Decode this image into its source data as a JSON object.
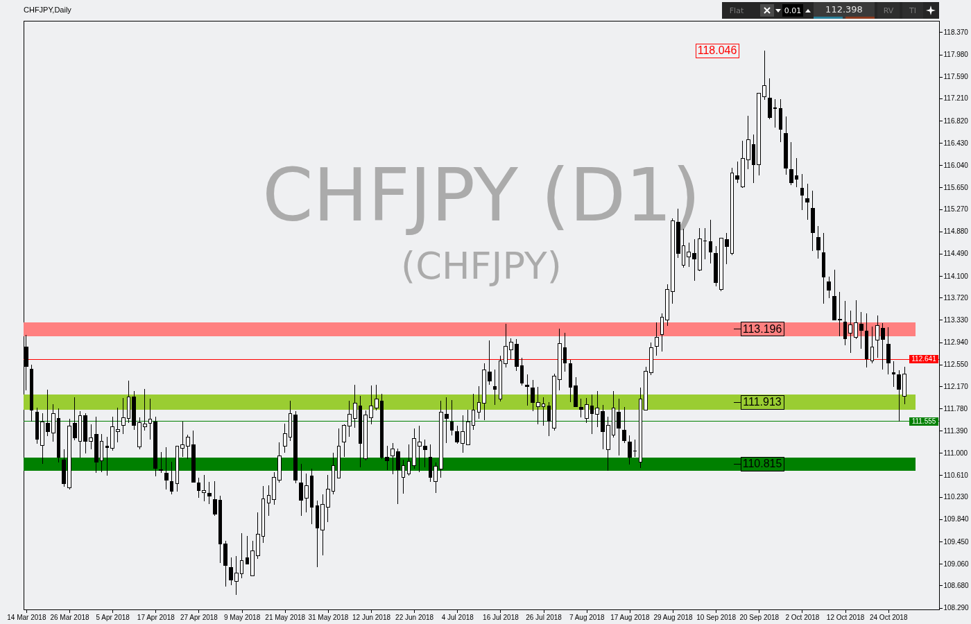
{
  "chart_data": {
    "type": "candlestick",
    "title": "CHFJPY,Daily",
    "categories": [
      "14 Mar 2018",
      null,
      null,
      null,
      null,
      null,
      null,
      null,
      "26 Mar 2018",
      null,
      null,
      null,
      null,
      null,
      null,
      null,
      "5 Apr 2018",
      null,
      null,
      null,
      null,
      null,
      null,
      null,
      "17 Apr 2018",
      null,
      null,
      null,
      null,
      null,
      null,
      null,
      "27 Apr 2018",
      null,
      null,
      null,
      null,
      null,
      null,
      null,
      "9 May 2018",
      null,
      null,
      null,
      null,
      null,
      null,
      null,
      "21 May 2018",
      null,
      null,
      null,
      null,
      null,
      null,
      null,
      "31 May 2018",
      null,
      null,
      null,
      null,
      null,
      null,
      null,
      "12 Jun 2018",
      null,
      null,
      null,
      null,
      null,
      null,
      null,
      "22 Jun 2018",
      null,
      null,
      null,
      null,
      null,
      null,
      null,
      "4 Jul 2018",
      null,
      null,
      null,
      null,
      null,
      null,
      null,
      "16 Jul 2018",
      null,
      null,
      null,
      null,
      null,
      null,
      null,
      "26 Jul 2018",
      null,
      null,
      null,
      null,
      null,
      null,
      null,
      "7 Aug 2018",
      null,
      null,
      null,
      null,
      null,
      null,
      null,
      "17 Aug 2018",
      null,
      null,
      null,
      null,
      null,
      null,
      null,
      "29 Aug 2018",
      null,
      null,
      null,
      null,
      null,
      null,
      null,
      "10 Sep 2018",
      null,
      null,
      null,
      null,
      null,
      null,
      null,
      "20 Sep 2018",
      null,
      null,
      null,
      null,
      null,
      null,
      null,
      "2 Oct 2018",
      null,
      null,
      null,
      null,
      null,
      null,
      null,
      "12 Oct 2018",
      null,
      null,
      null,
      null,
      null,
      null,
      null,
      "24 Oct 2018",
      null,
      null,
      null
    ],
    "ohlc": [
      [
        112.86,
        113.07,
        112.1,
        112.52
      ],
      [
        112.47,
        112.55,
        111.55,
        111.75
      ],
      [
        111.72,
        111.79,
        111.16,
        111.24
      ],
      [
        111.13,
        111.7,
        110.81,
        111.55
      ],
      [
        111.52,
        112.11,
        111.3,
        111.37
      ],
      [
        111.35,
        111.86,
        111.2,
        111.69
      ],
      [
        111.61,
        111.78,
        110.84,
        110.92
      ],
      [
        110.88,
        111.06,
        110.41,
        110.46
      ],
      [
        110.39,
        111.6,
        110.36,
        111.47
      ],
      [
        111.52,
        111.97,
        111.22,
        111.26
      ],
      [
        111.21,
        111.73,
        110.92,
        111.66
      ],
      [
        111.65,
        111.7,
        110.99,
        111.21
      ],
      [
        111.21,
        111.5,
        111.07,
        111.27
      ],
      [
        111.33,
        111.64,
        110.65,
        110.84
      ],
      [
        110.86,
        111.33,
        110.67,
        111.2
      ],
      [
        111.12,
        111.28,
        110.6,
        111.1
      ],
      [
        111.08,
        111.64,
        111.04,
        111.46
      ],
      [
        111.38,
        111.79,
        111.19,
        111.41
      ],
      [
        111.48,
        111.96,
        111.33,
        111.62
      ],
      [
        111.6,
        112.27,
        111.53,
        111.98
      ],
      [
        111.98,
        112.09,
        111.4,
        111.49
      ],
      [
        111.11,
        111.62,
        111.06,
        111.53
      ],
      [
        111.46,
        112.12,
        111.39,
        111.51
      ],
      [
        111.52,
        111.95,
        111.23,
        111.59
      ],
      [
        111.55,
        111.64,
        110.59,
        110.73
      ],
      [
        110.71,
        111.02,
        110.65,
        110.7
      ],
      [
        110.65,
        111.1,
        110.36,
        110.52
      ],
      [
        110.5,
        110.85,
        110.28,
        110.33
      ],
      [
        110.47,
        111.13,
        110.33,
        111.12
      ],
      [
        111.08,
        111.55,
        110.93,
        111.14
      ],
      [
        111.12,
        111.32,
        110.89,
        111.28
      ],
      [
        111.15,
        111.39,
        110.48,
        110.49
      ],
      [
        110.48,
        110.57,
        110.22,
        110.34
      ],
      [
        110.31,
        110.61,
        110.16,
        110.34
      ],
      [
        110.3,
        110.49,
        110.1,
        110.25
      ],
      [
        110.18,
        110.51,
        109.9,
        109.93
      ],
      [
        110.17,
        110.25,
        109.07,
        109.41
      ],
      [
        109.41,
        109.46,
        108.66,
        109.03
      ],
      [
        109.0,
        109.17,
        108.69,
        108.78
      ],
      [
        108.75,
        109.2,
        108.51,
        108.9
      ],
      [
        108.89,
        109.6,
        108.81,
        109.12
      ],
      [
        109.16,
        109.55,
        109.05,
        109.06
      ],
      [
        108.85,
        109.46,
        108.85,
        109.29
      ],
      [
        109.2,
        109.96,
        109.15,
        109.58
      ],
      [
        109.54,
        110.42,
        109.43,
        110.2
      ],
      [
        110.12,
        110.43,
        109.9,
        110.26
      ],
      [
        110.19,
        110.66,
        110.09,
        110.57
      ],
      [
        110.52,
        111.19,
        110.48,
        110.95
      ],
      [
        111.12,
        111.51,
        111.0,
        111.34
      ],
      [
        111.28,
        111.91,
        111.21,
        111.69
      ],
      [
        111.67,
        111.73,
        110.47,
        110.53
      ],
      [
        110.48,
        110.81,
        109.9,
        110.17
      ],
      [
        110.21,
        110.64,
        109.96,
        110.43
      ],
      [
        110.6,
        110.72,
        109.75,
        110.05
      ],
      [
        110.07,
        110.17,
        109.0,
        109.69
      ],
      [
        109.65,
        110.28,
        109.21,
        110.1
      ],
      [
        110.05,
        110.62,
        109.79,
        110.37
      ],
      [
        110.33,
        111.01,
        110.27,
        110.78
      ],
      [
        110.56,
        111.43,
        110.56,
        111.12
      ],
      [
        111.19,
        111.5,
        110.93,
        111.49
      ],
      [
        111.47,
        111.92,
        111.28,
        111.68
      ],
      [
        111.61,
        112.2,
        111.44,
        111.87
      ],
      [
        111.82,
        112.0,
        110.75,
        111.17
      ],
      [
        110.9,
        111.74,
        110.87,
        111.67
      ],
      [
        111.62,
        112.18,
        111.5,
        111.82
      ],
      [
        111.79,
        112.19,
        111.75,
        111.94
      ],
      [
        111.91,
        112.04,
        110.9,
        110.93
      ],
      [
        110.92,
        111.13,
        110.7,
        110.86
      ],
      [
        110.95,
        111.17,
        110.63,
        111.07
      ],
      [
        111.02,
        111.08,
        110.1,
        110.71
      ],
      [
        110.57,
        110.88,
        110.29,
        110.78
      ],
      [
        110.64,
        111.15,
        110.6,
        110.85
      ],
      [
        110.78,
        111.43,
        110.73,
        111.25
      ],
      [
        111.12,
        111.48,
        110.67,
        111.19
      ],
      [
        111.12,
        111.23,
        110.75,
        111.06
      ],
      [
        110.93,
        111.15,
        110.5,
        110.57
      ],
      [
        110.5,
        110.84,
        110.3,
        110.77
      ],
      [
        110.72,
        111.91,
        110.57,
        111.72
      ],
      [
        111.68,
        111.98,
        111.17,
        111.6
      ],
      [
        111.55,
        111.93,
        111.31,
        111.4
      ],
      [
        111.37,
        111.48,
        111.16,
        111.19
      ],
      [
        111.17,
        111.66,
        111.0,
        111.37
      ],
      [
        111.15,
        111.76,
        111.14,
        111.54
      ],
      [
        111.48,
        112.04,
        111.4,
        111.75
      ],
      [
        111.71,
        112.17,
        111.6,
        111.88
      ],
      [
        111.87,
        112.57,
        111.57,
        112.45
      ],
      [
        112.42,
        112.97,
        112.19,
        112.26
      ],
      [
        112.16,
        112.46,
        111.84,
        112.11
      ],
      [
        111.95,
        112.71,
        111.9,
        112.61
      ],
      [
        112.56,
        113.26,
        112.5,
        112.87
      ],
      [
        112.81,
        113.01,
        112.64,
        112.94
      ],
      [
        112.9,
        113.0,
        112.44,
        112.52
      ],
      [
        112.53,
        112.67,
        112.18,
        112.22
      ],
      [
        112.19,
        112.38,
        111.83,
        112.16
      ],
      [
        112.14,
        112.28,
        111.73,
        111.89
      ],
      [
        111.81,
        112.16,
        111.5,
        111.88
      ],
      [
        111.81,
        111.98,
        111.48,
        111.86
      ],
      [
        111.82,
        111.89,
        111.3,
        111.56
      ],
      [
        111.44,
        112.39,
        111.39,
        112.35
      ],
      [
        112.29,
        113.18,
        112.1,
        112.92
      ],
      [
        112.85,
        113.1,
        112.42,
        112.58
      ],
      [
        112.56,
        112.63,
        111.89,
        112.15
      ],
      [
        112.18,
        112.33,
        111.8,
        111.81
      ],
      [
        111.8,
        111.95,
        111.62,
        111.76
      ],
      [
        111.6,
        111.96,
        111.53,
        111.85
      ],
      [
        111.82,
        112.02,
        111.33,
        111.69
      ],
      [
        111.68,
        112.08,
        111.45,
        111.79
      ],
      [
        111.73,
        111.84,
        111.07,
        111.37
      ],
      [
        111.06,
        111.64,
        110.69,
        111.49
      ],
      [
        111.32,
        112.09,
        111.27,
        111.79
      ],
      [
        111.71,
        111.95,
        110.96,
        111.43
      ],
      [
        111.4,
        111.8,
        111.18,
        111.22
      ],
      [
        111.19,
        111.31,
        110.8,
        110.92
      ],
      [
        111.03,
        111.24,
        110.93,
        111.03
      ],
      [
        110.84,
        112.15,
        110.74,
        111.94
      ],
      [
        111.75,
        112.51,
        111.74,
        112.43
      ],
      [
        112.41,
        112.94,
        112.37,
        112.85
      ],
      [
        112.87,
        113.29,
        112.71,
        113.03
      ],
      [
        113.07,
        113.45,
        112.78,
        113.38
      ],
      [
        113.33,
        113.95,
        113.23,
        113.86
      ],
      [
        113.83,
        115.11,
        113.61,
        115.07
      ],
      [
        115.04,
        115.28,
        114.42,
        114.5
      ],
      [
        114.29,
        114.93,
        114.25,
        114.63
      ],
      [
        114.43,
        114.68,
        114.26,
        114.52
      ],
      [
        114.49,
        114.75,
        114.02,
        114.4
      ],
      [
        114.2,
        114.94,
        114.19,
        114.75
      ],
      [
        114.72,
        114.94,
        114.39,
        114.71
      ],
      [
        114.7,
        115.09,
        114.32,
        114.52
      ],
      [
        114.49,
        114.62,
        113.92,
        113.99
      ],
      [
        113.86,
        114.77,
        113.83,
        114.76
      ],
      [
        114.74,
        114.86,
        114.31,
        114.62
      ],
      [
        114.5,
        115.99,
        114.46,
        115.9
      ],
      [
        115.85,
        116.1,
        115.73,
        115.79
      ],
      [
        115.66,
        116.47,
        115.64,
        116.16
      ],
      [
        116.13,
        116.91,
        115.97,
        116.49
      ],
      [
        116.4,
        116.58,
        115.73,
        116.05
      ],
      [
        116.05,
        117.31,
        115.86,
        117.3
      ],
      [
        117.24,
        118.046,
        117.18,
        117.43
      ],
      [
        117.22,
        117.56,
        116.84,
        116.87
      ],
      [
        117.04,
        117.2,
        116.7,
        117.03
      ],
      [
        117.03,
        117.2,
        116.45,
        116.67
      ],
      [
        116.6,
        116.9,
        115.88,
        115.99
      ],
      [
        115.96,
        116.44,
        115.69,
        115.73
      ],
      [
        115.85,
        116.16,
        115.66,
        115.79
      ],
      [
        115.64,
        115.89,
        115.25,
        115.51
      ],
      [
        115.46,
        115.72,
        115.08,
        115.4
      ],
      [
        115.28,
        115.59,
        114.54,
        114.86
      ],
      [
        114.78,
        114.98,
        114.4,
        114.56
      ],
      [
        114.51,
        114.85,
        113.62,
        114.08
      ],
      [
        114.0,
        114.09,
        113.71,
        113.85
      ],
      [
        113.74,
        114.21,
        113.32,
        113.33
      ],
      [
        113.34,
        113.82,
        113.05,
        113.33
      ],
      [
        113.29,
        113.66,
        112.89,
        113.0
      ],
      [
        113.1,
        113.49,
        112.75,
        113.25
      ],
      [
        113.03,
        113.68,
        113.0,
        113.28
      ],
      [
        113.26,
        113.47,
        112.82,
        113.15
      ],
      [
        113.13,
        113.44,
        112.5,
        112.65
      ],
      [
        112.61,
        113.22,
        112.57,
        112.86
      ],
      [
        112.98,
        113.41,
        112.67,
        113.23
      ],
      [
        113.18,
        113.28,
        112.46,
        112.99
      ],
      [
        112.91,
        113.2,
        112.38,
        112.58
      ],
      [
        112.41,
        112.61,
        112.16,
        112.38
      ],
      [
        112.37,
        112.45,
        111.555,
        112.11
      ],
      [
        111.99,
        112.51,
        111.86,
        112.38
      ]
    ],
    "ylim": [
      108.26,
      118.57
    ],
    "yticks": [
      {
        "value": 108.29,
        "label": "108.290"
      },
      {
        "value": 108.68,
        "label": "108.680"
      },
      {
        "value": 109.06,
        "label": "109.060"
      },
      {
        "value": 109.45,
        "label": "109.450"
      },
      {
        "value": 109.84,
        "label": "109.840"
      },
      {
        "value": 110.23,
        "label": "110.230"
      },
      {
        "value": 110.61,
        "label": "110.610"
      },
      {
        "value": 111,
        "label": "111.000"
      },
      {
        "value": 111.39,
        "label": "111.390"
      },
      {
        "value": 111.78,
        "label": "111.780"
      },
      {
        "value": 112.17,
        "label": "112.170"
      },
      {
        "value": 112.55,
        "label": "112.550"
      },
      {
        "value": 112.94,
        "label": "112.940"
      },
      {
        "value": 113.33,
        "label": "113.330"
      },
      {
        "value": 113.72,
        "label": "113.720"
      },
      {
        "value": 114.1,
        "label": "114.100"
      },
      {
        "value": 114.49,
        "label": "114.490"
      },
      {
        "value": 114.88,
        "label": "114.880"
      },
      {
        "value": 115.27,
        "label": "115.270"
      },
      {
        "value": 115.65,
        "label": "115.650"
      },
      {
        "value": 116.04,
        "label": "116.040"
      },
      {
        "value": 116.43,
        "label": "116.430"
      },
      {
        "value": 116.82,
        "label": "116.820"
      },
      {
        "value": 117.21,
        "label": "117.210"
      },
      {
        "value": 117.59,
        "label": "117.590"
      },
      {
        "value": 117.98,
        "label": "117.980"
      },
      {
        "value": 118.37,
        "label": "118.370"
      }
    ],
    "ref_lines": [
      {
        "axis": "y",
        "value": 112.641,
        "label": "112.641",
        "color": "#ff0000"
      },
      {
        "axis": "y",
        "value": 111.555,
        "label": "111.555",
        "color": "#008000"
      }
    ],
    "bands": [
      {
        "axis": "y",
        "from": 113.05,
        "to": 113.29,
        "label": "113.196",
        "color": "#ff8080"
      },
      {
        "axis": "y",
        "from": 111.76,
        "to": 112.02,
        "label": "111.913",
        "color": "#9acd32"
      },
      {
        "axis": "y",
        "from": 110.69,
        "to": 110.92,
        "label": "110.815",
        "color": "#008000"
      }
    ],
    "annotations": [
      "CHFJPY (D1)",
      "(CHFJPY)",
      "Flat",
      "0.01",
      "112.398",
      "RV",
      "TI",
      "118.046"
    ]
  }
}
